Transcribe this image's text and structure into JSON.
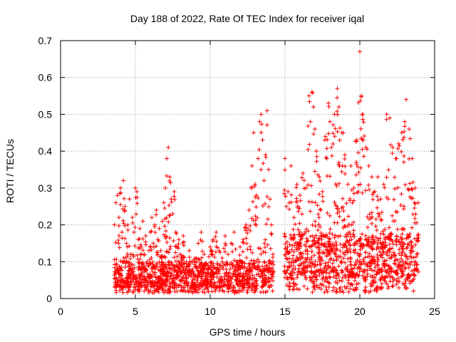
{
  "chart_data": {
    "type": "scatter",
    "title": "Day 188 of 2022, Rate Of TEC Index for receiver iqal",
    "xlabel": "GPS time / hours",
    "ylabel": "ROTI / TECUs",
    "xlim": [
      0,
      25
    ],
    "ylim": [
      0,
      0.7
    ],
    "xticks": [
      0,
      5,
      10,
      15,
      20,
      25
    ],
    "yticks": [
      0,
      0.1,
      0.2,
      0.3,
      0.4,
      0.5,
      0.6,
      0.7
    ],
    "xtick_labels": [
      "0",
      "5",
      "10",
      "15",
      "20",
      "25"
    ],
    "ytick_labels": [
      "0",
      "0.1",
      "0.2",
      "0.3",
      "0.4",
      "0.5",
      "0.6",
      "0.7"
    ],
    "grid": true,
    "marker": "+",
    "color": "#ff0000",
    "series": [
      {
        "points": [
          [
            3.6,
            0.2
          ],
          [
            3.7,
            0.26
          ],
          [
            3.8,
            0.28
          ],
          [
            3.9,
            0.22
          ],
          [
            4.0,
            0.3
          ],
          [
            4.1,
            0.18
          ],
          [
            4.2,
            0.32
          ],
          [
            4.3,
            0.25
          ],
          [
            4.4,
            0.15
          ],
          [
            4.5,
            0.2
          ],
          [
            4.6,
            0.27
          ],
          [
            4.7,
            0.12
          ],
          [
            4.8,
            0.22
          ],
          [
            4.9,
            0.18
          ],
          [
            5.0,
            0.3
          ],
          [
            5.1,
            0.29
          ],
          [
            5.2,
            0.16
          ],
          [
            5.3,
            0.19
          ],
          [
            5.4,
            0.14
          ],
          [
            5.5,
            0.21
          ],
          [
            5.6,
            0.12
          ],
          [
            5.7,
            0.17
          ],
          [
            5.8,
            0.1
          ],
          [
            5.9,
            0.13
          ],
          [
            6.0,
            0.18
          ],
          [
            6.1,
            0.22
          ],
          [
            6.2,
            0.15
          ],
          [
            6.3,
            0.2
          ],
          [
            6.4,
            0.24
          ],
          [
            6.5,
            0.16
          ],
          [
            6.6,
            0.19
          ],
          [
            6.7,
            0.13
          ],
          [
            6.8,
            0.21
          ],
          [
            6.9,
            0.26
          ],
          [
            7.0,
            0.3
          ],
          [
            7.1,
            0.38
          ],
          [
            7.2,
            0.41
          ],
          [
            7.3,
            0.33
          ],
          [
            7.4,
            0.27
          ],
          [
            7.5,
            0.23
          ],
          [
            7.6,
            0.29
          ],
          [
            7.7,
            0.18
          ],
          [
            7.8,
            0.14
          ],
          [
            7.9,
            0.16
          ],
          [
            8.0,
            0.12
          ],
          [
            8.2,
            0.17
          ],
          [
            8.4,
            0.1
          ],
          [
            8.6,
            0.13
          ],
          [
            8.8,
            0.08
          ],
          [
            9.0,
            0.11
          ],
          [
            9.2,
            0.15
          ],
          [
            9.4,
            0.18
          ],
          [
            9.6,
            0.12
          ],
          [
            9.8,
            0.09
          ],
          [
            10.0,
            0.14
          ],
          [
            10.2,
            0.16
          ],
          [
            10.4,
            0.18
          ],
          [
            10.6,
            0.13
          ],
          [
            10.8,
            0.11
          ],
          [
            11.0,
            0.17
          ],
          [
            11.2,
            0.12
          ],
          [
            11.4,
            0.15
          ],
          [
            11.6,
            0.18
          ],
          [
            11.8,
            0.1
          ],
          [
            12.0,
            0.14
          ],
          [
            12.2,
            0.16
          ],
          [
            12.4,
            0.2
          ],
          [
            12.6,
            0.24
          ],
          [
            12.8,
            0.36
          ],
          [
            12.9,
            0.45
          ],
          [
            13.0,
            0.31
          ],
          [
            13.1,
            0.28
          ],
          [
            13.2,
            0.38
          ],
          [
            13.3,
            0.48
          ],
          [
            13.4,
            0.5
          ],
          [
            13.5,
            0.43
          ],
          [
            13.6,
            0.32
          ],
          [
            13.7,
            0.39
          ],
          [
            13.8,
            0.51
          ],
          [
            13.9,
            0.35
          ],
          [
            14.0,
            0.27
          ],
          [
            14.1,
            0.2
          ],
          [
            14.2,
            0.12
          ],
          [
            15.0,
            0.38
          ],
          [
            15.1,
            0.25
          ],
          [
            15.2,
            0.29
          ],
          [
            15.4,
            0.36
          ],
          [
            15.6,
            0.22
          ],
          [
            15.8,
            0.31
          ],
          [
            16.0,
            0.28
          ],
          [
            16.2,
            0.34
          ],
          [
            16.4,
            0.3
          ],
          [
            16.6,
            0.55
          ],
          [
            16.7,
            0.48
          ],
          [
            16.8,
            0.56
          ],
          [
            16.9,
            0.52
          ],
          [
            17.0,
            0.46
          ],
          [
            17.1,
            0.4
          ],
          [
            17.3,
            0.33
          ],
          [
            17.5,
            0.29
          ],
          [
            17.7,
            0.44
          ],
          [
            17.9,
            0.53
          ],
          [
            18.0,
            0.48
          ],
          [
            18.1,
            0.41
          ],
          [
            18.3,
            0.5
          ],
          [
            18.5,
            0.57
          ],
          [
            18.6,
            0.52
          ],
          [
            18.8,
            0.45
          ],
          [
            19.0,
            0.39
          ],
          [
            19.2,
            0.31
          ],
          [
            19.4,
            0.36
          ],
          [
            19.6,
            0.3
          ],
          [
            19.8,
            0.43
          ],
          [
            20.0,
            0.67
          ],
          [
            20.1,
            0.55
          ],
          [
            20.2,
            0.5
          ],
          [
            20.4,
            0.41
          ],
          [
            20.6,
            0.36
          ],
          [
            20.8,
            0.33
          ],
          [
            21.0,
            0.29
          ],
          [
            21.2,
            0.33
          ],
          [
            21.4,
            0.27
          ],
          [
            21.6,
            0.31
          ],
          [
            21.8,
            0.5
          ],
          [
            22.0,
            0.49
          ],
          [
            22.2,
            0.41
          ],
          [
            22.4,
            0.38
          ],
          [
            22.6,
            0.42
          ],
          [
            22.8,
            0.45
          ],
          [
            23.0,
            0.48
          ],
          [
            23.1,
            0.54
          ],
          [
            23.3,
            0.46
          ],
          [
            23.5,
            0.38
          ],
          [
            23.7,
            0.3
          ],
          [
            23.9,
            0.26
          ]
        ]
      }
    ]
  }
}
